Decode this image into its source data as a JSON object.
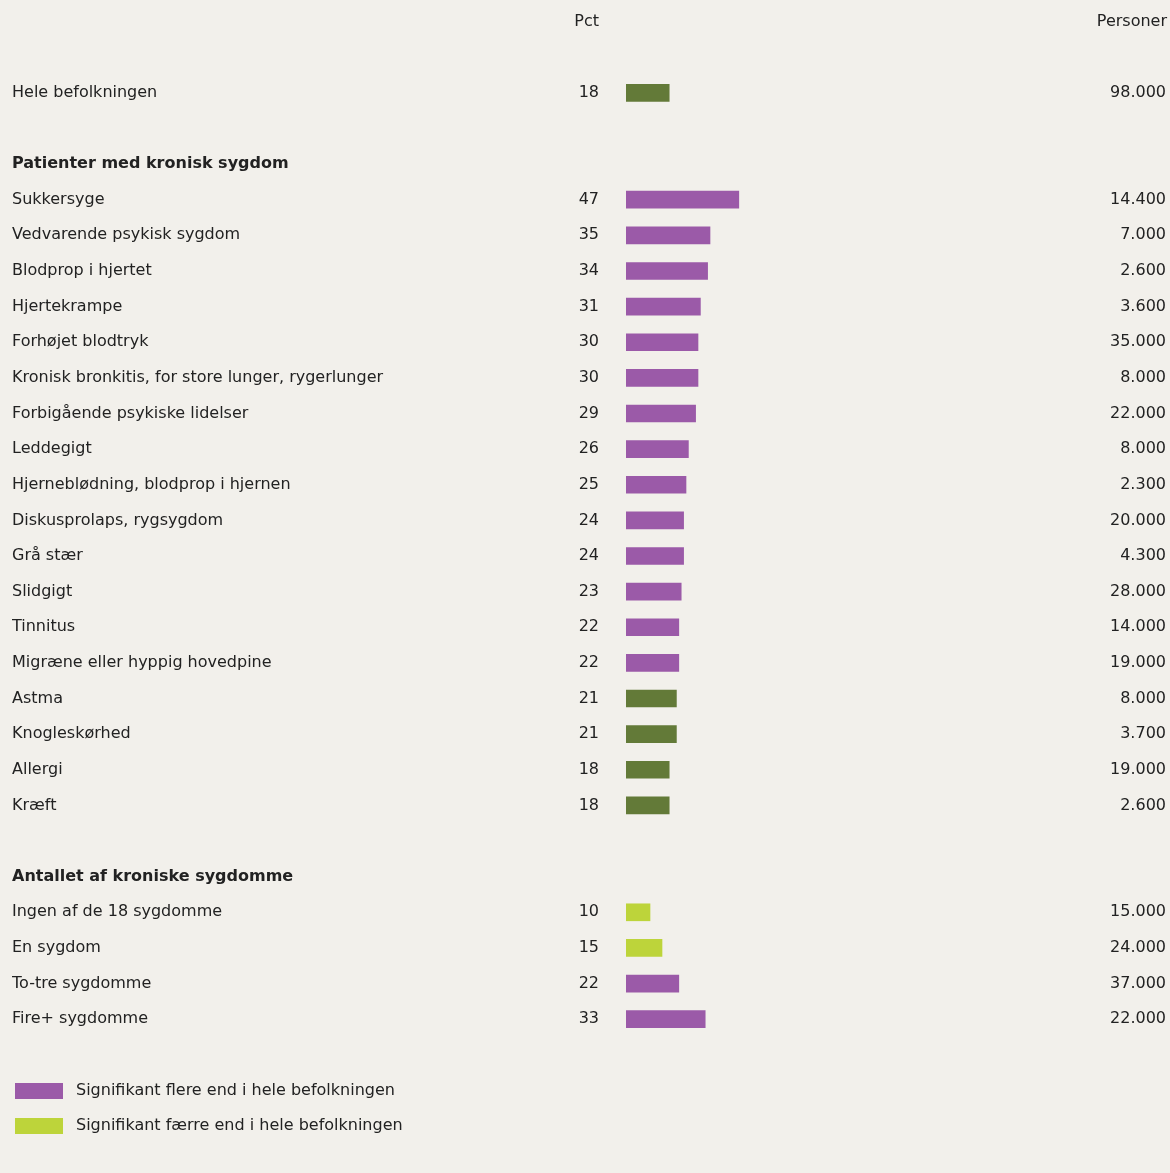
{
  "chart_data": {
    "type": "bar",
    "orientation": "horizontal",
    "xlabel": "Pct",
    "annotations": [
      "Personer"
    ],
    "categories": [
      "Hele befolkningen",
      null,
      "Patienter med kronisk sygdom",
      "Sukkersyge",
      "Vedvarende psykisk sygdom",
      "Blodprop i hjertet",
      "Hjertekrampe",
      "Forhøjet blodtryk",
      "Kronisk bronkitis, for store lunger, rygerlunger",
      "Forbigående psykiske lidelser",
      "Leddegigt",
      "Hjerneblødning, blodprop i hjernen",
      "Diskusprolaps, rygsygdom",
      "Grå stær",
      "Slidgigt",
      "Tinnitus",
      "Migræne eller hyppig hovedpine",
      "Astma",
      "Knogleskørhed",
      "Allergi",
      "Kræft",
      null,
      "Antallet af kroniske sygdomme",
      "Ingen af de 18 sygdomme",
      "En sygdom",
      "To-tre sygdomme",
      "Fire+ sygdomme"
    ],
    "y2_categories": [
      "98.000",
      null,
      null,
      "14.400",
      "7.000",
      "2.600",
      "3.600",
      "35.000",
      "8.000",
      "22.000",
      "8.000",
      "2.300",
      "20.000",
      "4.300",
      "28.000",
      "14.000",
      "19.000",
      "8.000",
      "3.700",
      "19.000",
      "2.600",
      null,
      null,
      "15.000",
      "24.000",
      "37.000",
      "22.000"
    ],
    "series": [
      {
        "name": "Signifikant flere end i hele befolkningen",
        "color": "#9b5aa8",
        "values": [
          null,
          null,
          null,
          47,
          35,
          34,
          31,
          30,
          30,
          29,
          26,
          25,
          24,
          24,
          23,
          22,
          22,
          null,
          null,
          null,
          null,
          null,
          null,
          null,
          null,
          22,
          33
        ]
      },
      {
        "name": "Signifikant færre end i hele befolkningen",
        "color": "#bdd43a",
        "values": [
          null,
          null,
          null,
          null,
          null,
          null,
          null,
          null,
          null,
          null,
          null,
          null,
          null,
          null,
          null,
          null,
          null,
          null,
          null,
          null,
          null,
          null,
          null,
          10,
          15,
          null,
          null
        ]
      },
      {
        "color": "#637a38",
        "values": [
          18,
          null,
          null,
          null,
          null,
          null,
          null,
          null,
          null,
          null,
          null,
          null,
          null,
          null,
          null,
          null,
          null,
          21,
          21,
          18,
          18,
          null,
          null,
          null,
          null,
          null,
          null
        ]
      }
    ],
    "data_labels": true,
    "tick_labels": "y",
    "legend": "bottom left"
  }
}
